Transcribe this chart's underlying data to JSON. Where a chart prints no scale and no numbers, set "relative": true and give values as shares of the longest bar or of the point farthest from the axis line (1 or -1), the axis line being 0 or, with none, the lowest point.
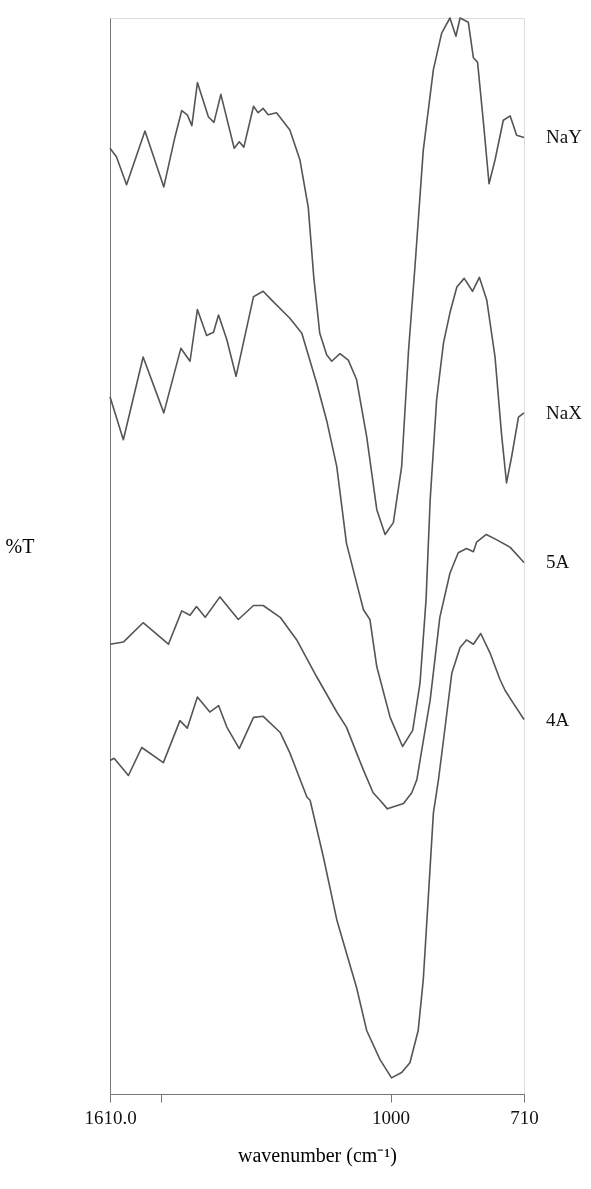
{
  "chart_data": {
    "type": "line",
    "relative": true,
    "xlabel": "wavenumber (cm⁻¹)",
    "ylabel": "%T",
    "xlim": [
      1610,
      710
    ],
    "xticks": [
      {
        "value": 1610,
        "label": "1610.0"
      },
      {
        "value": 1500,
        "label": null
      },
      1000,
      710
    ],
    "line_style": "solid",
    "series": [
      {
        "name": "NaY",
        "color": "#555555",
        "x": [
          1610,
          1596,
          1574,
          1534,
          1493,
          1469,
          1454,
          1442,
          1432,
          1420,
          1396,
          1384,
          1369,
          1340,
          1329,
          1319,
          1298,
          1288,
          1277,
          1266,
          1248,
          1219,
          1197,
          1179,
          1167,
          1154,
          1139,
          1128,
          1110,
          1092,
          1074,
          1052,
          1030,
          1012,
          994,
          976,
          961,
          947,
          929,
          907,
          889,
          871,
          858,
          849,
          831,
          820,
          811,
          798,
          786,
          773,
          755,
          740,
          726,
          710
        ],
        "values": [
          0.879,
          0.871,
          0.845,
          0.895,
          0.843,
          0.889,
          0.914,
          0.91,
          0.9,
          0.94,
          0.908,
          0.903,
          0.929,
          0.879,
          0.885,
          0.88,
          0.918,
          0.912,
          0.916,
          0.91,
          0.912,
          0.896,
          0.868,
          0.824,
          0.759,
          0.707,
          0.687,
          0.681,
          0.688,
          0.682,
          0.664,
          0.611,
          0.543,
          0.52,
          0.531,
          0.583,
          0.691,
          0.769,
          0.877,
          0.952,
          0.986,
          1,
          0.983,
          1,
          0.996,
          0.963,
          0.959,
          0.902,
          0.846,
          0.868,
          0.905,
          0.909,
          0.891,
          0.889
        ]
      },
      {
        "name": "NaX",
        "color": "#555555",
        "x": [
          1610,
          1581,
          1538,
          1493,
          1456,
          1436,
          1420,
          1400,
          1385,
          1374,
          1356,
          1336,
          1298,
          1277,
          1259,
          1219,
          1193,
          1161,
          1139,
          1117,
          1096,
          1074,
          1059,
          1045,
          1030,
          1001,
          974,
          952,
          936,
          923,
          914,
          900,
          885,
          871,
          856,
          840,
          822,
          807,
          791,
          773,
          759,
          748,
          737,
          722,
          710
        ],
        "values": [
          0.648,
          0.608,
          0.685,
          0.633,
          0.693,
          0.681,
          0.729,
          0.705,
          0.708,
          0.724,
          0.701,
          0.667,
          0.741,
          0.746,
          0.738,
          0.721,
          0.707,
          0.661,
          0.626,
          0.583,
          0.512,
          0.475,
          0.45,
          0.441,
          0.397,
          0.35,
          0.323,
          0.338,
          0.382,
          0.459,
          0.552,
          0.645,
          0.698,
          0.726,
          0.75,
          0.758,
          0.746,
          0.759,
          0.738,
          0.685,
          0.614,
          0.568,
          0.592,
          0.629,
          0.633
        ]
      },
      {
        "name": "5A",
        "color": "#555555",
        "x": [
          1610,
          1581,
          1538,
          1483,
          1454,
          1436,
          1422,
          1403,
          1371,
          1331,
          1298,
          1277,
          1240,
          1204,
          1161,
          1117,
          1096,
          1074,
          1059,
          1038,
          1023,
          1007,
          972,
          954,
          943,
          936,
          914,
          893,
          871,
          853,
          835,
          820,
          813,
          792,
          769,
          740,
          710
        ],
        "values": [
          0.418,
          0.42,
          0.438,
          0.418,
          0.449,
          0.445,
          0.453,
          0.443,
          0.462,
          0.441,
          0.454,
          0.454,
          0.443,
          0.422,
          0.388,
          0.355,
          0.341,
          0.317,
          0.301,
          0.28,
          0.273,
          0.265,
          0.27,
          0.28,
          0.292,
          0.31,
          0.366,
          0.443,
          0.484,
          0.503,
          0.507,
          0.504,
          0.513,
          0.52,
          0.515,
          0.508,
          0.494
        ]
      },
      {
        "name": "4A",
        "color": "#555555",
        "x": [
          1610,
          1601,
          1570,
          1541,
          1494,
          1458,
          1442,
          1420,
          1393,
          1374,
          1356,
          1329,
          1298,
          1277,
          1240,
          1219,
          1182,
          1175,
          1146,
          1117,
          1096,
          1074,
          1052,
          1023,
          998,
          976,
          958,
          940,
          929,
          918,
          907,
          896,
          885,
          867,
          849,
          835,
          820,
          804,
          784,
          762,
          751,
          733,
          710
        ],
        "values": [
          0.31,
          0.312,
          0.296,
          0.322,
          0.308,
          0.347,
          0.34,
          0.369,
          0.355,
          0.361,
          0.341,
          0.321,
          0.35,
          0.351,
          0.336,
          0.317,
          0.276,
          0.273,
          0.22,
          0.162,
          0.131,
          0.099,
          0.059,
          0.032,
          0.015,
          0.02,
          0.029,
          0.059,
          0.106,
          0.183,
          0.261,
          0.292,
          0.329,
          0.391,
          0.415,
          0.422,
          0.418,
          0.428,
          0.41,
          0.385,
          0.375,
          0.363,
          0.348
        ]
      }
    ]
  }
}
